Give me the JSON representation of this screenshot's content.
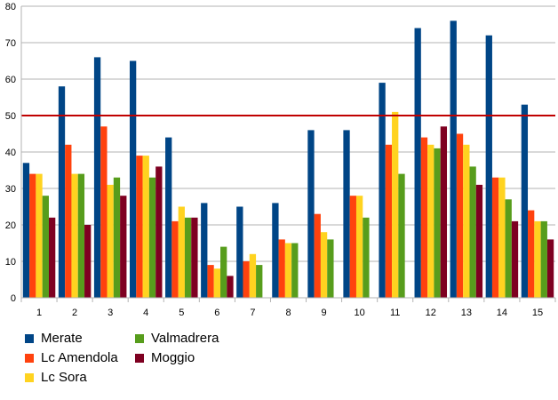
{
  "chart_data": {
    "type": "bar",
    "categories": [
      "1",
      "2",
      "3",
      "4",
      "5",
      "6",
      "7",
      "8",
      "9",
      "10",
      "11",
      "12",
      "13",
      "14",
      "15"
    ],
    "series": [
      {
        "name": "Merate",
        "color": "#004586",
        "values": [
          37,
          58,
          66,
          65,
          44,
          26,
          25,
          26,
          46,
          46,
          59,
          74,
          76,
          72,
          53
        ]
      },
      {
        "name": "Lc Amendola",
        "color": "#ff420e",
        "values": [
          34,
          42,
          47,
          39,
          21,
          9,
          10,
          16,
          23,
          28,
          42,
          44,
          45,
          33,
          24
        ]
      },
      {
        "name": "Lc Sora",
        "color": "#ffd320",
        "values": [
          34,
          34,
          31,
          39,
          25,
          8,
          12,
          15,
          18,
          28,
          51,
          42,
          42,
          33,
          21
        ]
      },
      {
        "name": "Valmadrera",
        "color": "#579d1c",
        "values": [
          28,
          34,
          33,
          33,
          22,
          14,
          9,
          15,
          16,
          22,
          34,
          41,
          36,
          27,
          21
        ]
      },
      {
        "name": "Moggio",
        "color": "#7e0021",
        "values": [
          22,
          20,
          28,
          36,
          22,
          6,
          null,
          null,
          null,
          null,
          null,
          47,
          31,
          21,
          16
        ]
      }
    ],
    "reference_line": {
      "value": 50,
      "color": "#c00000"
    },
    "ylim": [
      0,
      80
    ],
    "yticks": [
      0,
      10,
      20,
      30,
      40,
      50,
      60,
      70,
      80
    ],
    "grid": true,
    "legend": {
      "placement": "bottom-left",
      "columns": 2
    },
    "title": "",
    "xlabel": "",
    "ylabel": ""
  }
}
